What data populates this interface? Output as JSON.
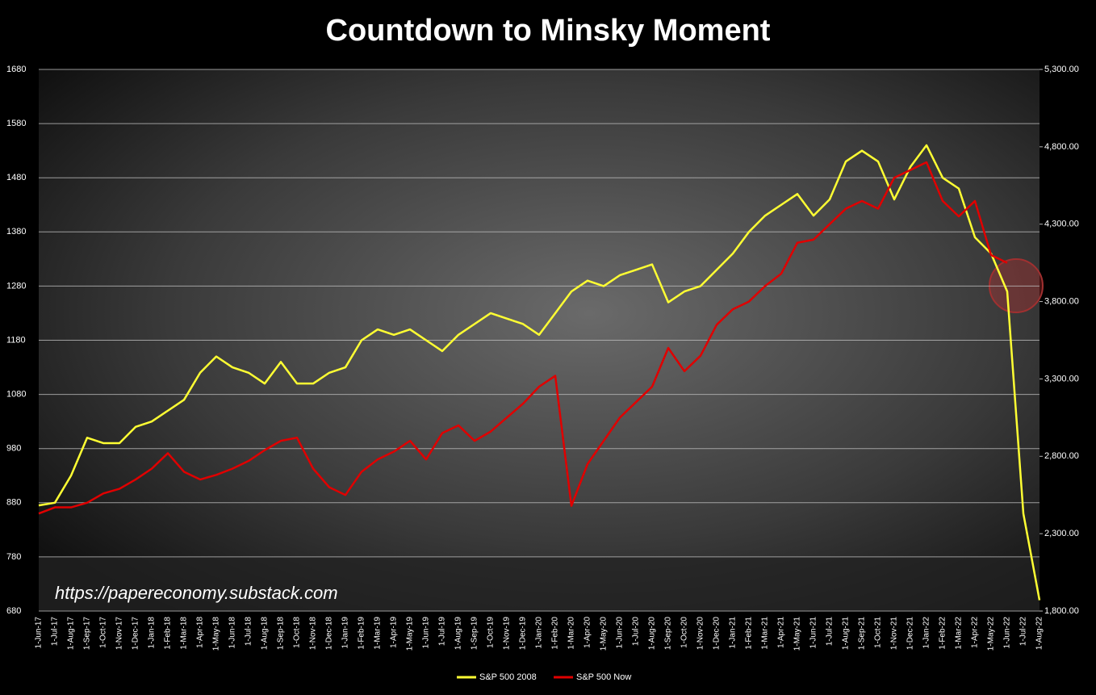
{
  "chart_data": {
    "type": "line",
    "title": "Countdown to Minsky Moment",
    "annotation": "https://papereconomy.substack.com",
    "categories": [
      "1-Jun-17",
      "1-Jul-17",
      "1-Aug-17",
      "1-Sep-17",
      "1-Oct-17",
      "1-Nov-17",
      "1-Dec-17",
      "1-Jan-18",
      "1-Feb-18",
      "1-Mar-18",
      "1-Apr-18",
      "1-May-18",
      "1-Jun-18",
      "1-Jul-18",
      "1-Aug-18",
      "1-Sep-18",
      "1-Oct-18",
      "1-Nov-18",
      "1-Dec-18",
      "1-Jan-19",
      "1-Feb-19",
      "1-Mar-19",
      "1-Apr-19",
      "1-May-19",
      "1-Jun-19",
      "1-Jul-19",
      "1-Aug-19",
      "1-Sep-19",
      "1-Oct-19",
      "1-Nov-19",
      "1-Dec-19",
      "1-Jan-20",
      "1-Feb-20",
      "1-Mar-20",
      "1-Apr-20",
      "1-May-20",
      "1-Jun-20",
      "1-Jul-20",
      "1-Aug-20",
      "1-Sep-20",
      "1-Oct-20",
      "1-Nov-20",
      "1-Dec-20",
      "1-Jan-21",
      "1-Feb-21",
      "1-Mar-21",
      "1-Apr-21",
      "1-May-21",
      "1-Jun-21",
      "1-Jul-21",
      "1-Aug-21",
      "1-Sep-21",
      "1-Oct-21",
      "1-Nov-21",
      "1-Dec-21",
      "1-Jan-22",
      "1-Feb-22",
      "1-Mar-22",
      "1-Apr-22",
      "1-May-22",
      "1-Jun-22",
      "1-Jul-22",
      "1-Aug-22"
    ],
    "series": [
      {
        "name": "S&P 500 2008",
        "color": "#ffff33",
        "axis": "y",
        "values": [
          875,
          880,
          930,
          1000,
          990,
          990,
          1020,
          1030,
          1050,
          1070,
          1120,
          1150,
          1130,
          1120,
          1100,
          1140,
          1100,
          1100,
          1120,
          1130,
          1180,
          1200,
          1190,
          1200,
          1180,
          1160,
          1190,
          1210,
          1230,
          1220,
          1210,
          1190,
          1230,
          1270,
          1290,
          1280,
          1300,
          1310,
          1320,
          1250,
          1270,
          1280,
          1310,
          1340,
          1380,
          1410,
          1430,
          1450,
          1410,
          1440,
          1510,
          1530,
          1510,
          1440,
          1500,
          1540,
          1480,
          1460,
          1370,
          1340,
          1270,
          860,
          700
        ]
      },
      {
        "name": "S&P 500 Now",
        "color": "#e00000",
        "axis": "y2",
        "values": [
          2430,
          2470,
          2470,
          2500,
          2560,
          2590,
          2650,
          2720,
          2820,
          2700,
          2650,
          2680,
          2720,
          2770,
          2840,
          2900,
          2920,
          2720,
          2600,
          2550,
          2700,
          2780,
          2830,
          2900,
          2780,
          2950,
          3000,
          2900,
          2960,
          3050,
          3140,
          3250,
          3320,
          2480,
          2750,
          2900,
          3050,
          3150,
          3250,
          3500,
          3350,
          3450,
          3650,
          3750,
          3800,
          3900,
          3980,
          4180,
          4200,
          4300,
          4400,
          4450,
          4400,
          4600,
          4650,
          4700,
          4450,
          4350,
          4450,
          4100,
          4050,
          null,
          null
        ]
      }
    ],
    "ylim": [
      680,
      1680
    ],
    "yticks": [
      680,
      780,
      880,
      980,
      1080,
      1180,
      1280,
      1380,
      1480,
      1580,
      1680
    ],
    "y2lim": [
      1800,
      5300
    ],
    "y2ticks": [
      {
        "value": 1800,
        "label": "1,800.00"
      },
      {
        "value": 2300,
        "label": "2,300.00"
      },
      {
        "value": 2800,
        "label": "2,800.00"
      },
      {
        "value": 3300,
        "label": "3,300.00"
      },
      {
        "value": 3800,
        "label": "3,800.00"
      },
      {
        "value": 4300,
        "label": "4,300.00"
      },
      {
        "value": 4800,
        "label": "4,800.00"
      },
      {
        "value": 5300,
        "label": "5,300.00"
      }
    ],
    "grid": true
  }
}
